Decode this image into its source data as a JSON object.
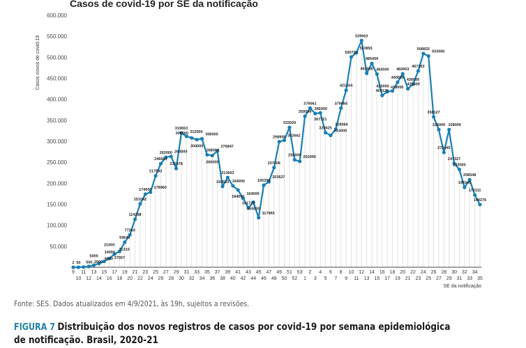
{
  "chart_data": {
    "type": "line",
    "title": "Casos de covid-19 por SE da notificação",
    "ylabel": "Casos novos de covid-19",
    "xlabel": "SE da notificação",
    "ylim": [
      0,
      600000
    ],
    "yticks": [
      0,
      50000,
      100000,
      150000,
      200000,
      250000,
      300000,
      350000,
      400000,
      450000,
      500000,
      550000,
      600000
    ],
    "ytick_labels": [
      "",
      "50.000",
      "100.000",
      "150.000",
      "200.000",
      "250.000",
      "300.000",
      "350.000",
      "400.000",
      "450.000",
      "500.000",
      "550.000",
      "600.000"
    ],
    "grid": "vertical drop lines",
    "line_color": "#1a7fb5",
    "x": [
      "9",
      "10",
      "11",
      "12",
      "13",
      "14",
      "15",
      "16",
      "17",
      "18",
      "19",
      "20",
      "21",
      "22",
      "23",
      "24",
      "25",
      "26",
      "27",
      "28",
      "29",
      "30",
      "31",
      "32",
      "33",
      "34",
      "35",
      "36",
      "37",
      "38",
      "39",
      "40",
      "41",
      "42",
      "43",
      "44",
      "45",
      "46",
      "47",
      "48",
      "49",
      "50",
      "51",
      "52",
      "53",
      "1",
      "2",
      "3",
      "4",
      "5",
      "6",
      "7",
      "8",
      "9",
      "10",
      "11",
      "12",
      "13",
      "14",
      "15",
      "16",
      "17",
      "18",
      "19",
      "20",
      "21",
      "22",
      "23",
      "24",
      "25",
      "26",
      "27",
      "28",
      "29",
      "30",
      "31",
      "32",
      "33",
      "34",
      "35"
    ],
    "values": [
      2,
      50,
      500,
      2000,
      5000,
      9000,
      14000,
      21000,
      31310,
      37957,
      59643,
      77263,
      114298,
      151042,
      174000,
      178960,
      217593,
      246669,
      262000,
      264000,
      235078,
      319653,
      312000,
      308000,
      304000,
      306000,
      268000,
      266000,
      276847,
      192633,
      213663,
      194000,
      184000,
      164000,
      141729,
      155000,
      117965,
      195399,
      203627,
      237406,
      298908,
      302662,
      333029,
      256000,
      252000,
      359594,
      379061,
      366000,
      367721,
      320625,
      314000,
      329084,
      379084,
      421504,
      500722,
      510891,
      539903,
      462000,
      485409,
      460000,
      409129,
      418000,
      420000,
      440655,
      460903,
      425000,
      436000,
      467363,
      508832,
      503000,
      358127,
      328000,
      273445,
      328006,
      247327,
      233000,
      190345,
      208548,
      172111,
      149276
    ]
  },
  "footer": {
    "source": "Fonte: SES. Dados atualizados em 4/9/2021, às 19h, sujeitos a revisões.",
    "figure_label": "FIGURA 7",
    "caption": "Distribuição dos novos registros de casos por covid-19 por semana epidemiológica de notificação. Brasil, 2020-21"
  }
}
